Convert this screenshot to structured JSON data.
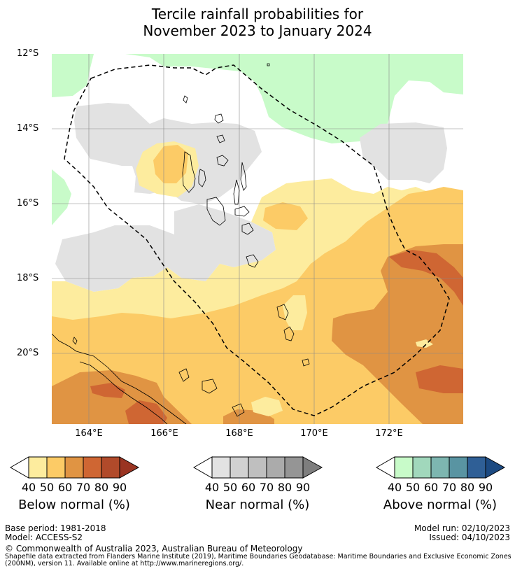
{
  "title": {
    "line1": "Tercile rainfall probabilities for",
    "line2": "November 2023 to January 2024"
  },
  "axes": {
    "lat_labels": [
      "12°S",
      "14°S",
      "16°S",
      "18°S",
      "20°S"
    ],
    "lon_labels": [
      "164°E",
      "166°E",
      "168°E",
      "170°E",
      "172°E"
    ]
  },
  "colorbars": [
    {
      "label": "Below normal (%)",
      "ticks": [
        "40",
        "50",
        "60",
        "70",
        "80",
        "90"
      ],
      "colors": [
        "#ffffff",
        "#fdec9e",
        "#fccb66",
        "#e09443",
        "#cf6633",
        "#b14a2a",
        "#9a3422"
      ]
    },
    {
      "label": "Near normal (%)",
      "ticks": [
        "40",
        "50",
        "60",
        "70",
        "80",
        "90"
      ],
      "colors": [
        "#ffffff",
        "#e2e2e2",
        "#d1d1d1",
        "#bfbfbf",
        "#ababab",
        "#959595",
        "#7e7e7e"
      ]
    },
    {
      "label": "Above normal (%)",
      "ticks": [
        "40",
        "50",
        "60",
        "70",
        "80",
        "90"
      ],
      "colors": [
        "#ffffff",
        "#c8fbc9",
        "#a1d8bc",
        "#7db6b0",
        "#5994a2",
        "#2f5f96",
        "#1c4a82"
      ]
    }
  ],
  "footer": {
    "base_period": "Base period: 1981-2018",
    "model": "Model: ACCESS-S2",
    "model_run": "Model run: 02/10/2023",
    "issued": "Issued: 04/10/2023",
    "copyright": "© Commonwealth of Australia 2023, Australian Bureau of Meteorology",
    "shapefile_line1": "Shapefile data extracted from Flanders Marine Institute (2019), Maritime Boundaries Geodatabase: Maritime Boundaries and Exclusive Economic Zones",
    "shapefile_line2": "(200NM), version 11. Available online at http://www.marineregions.org/."
  },
  "map_colors": {
    "below_50": "#fdec9e",
    "below_60": "#fccb66",
    "below_70": "#e09443",
    "below_80": "#cf6633",
    "below_90": "#b14a2a",
    "near_50": "#e2e2e2",
    "above_50": "#c8fbc9"
  }
}
